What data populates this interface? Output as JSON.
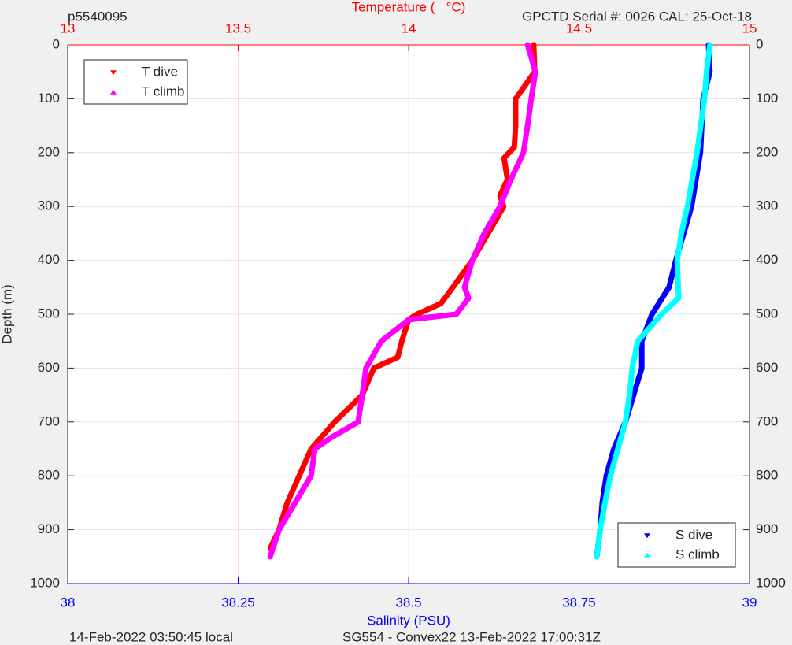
{
  "chart_data": {
    "type": "scatter",
    "top_left_label": "p5540095",
    "title": "Temperature (   °C)",
    "top_right_label": "GPCTD Serial #: 0026 CAL: 25-Oct-18",
    "ylabel": "Depth (m)",
    "xlabel": "Salinity (PSU)",
    "footer_left": "14-Feb-2022 03:50:45 local",
    "footer_center": "SG554 - Convex22 13-Feb-2022 17:00:31Z",
    "xlim": [
      38,
      39
    ],
    "xticks": [
      38,
      38.25,
      38.5,
      38.75,
      39
    ],
    "x2lim": [
      13,
      15
    ],
    "x2ticks": [
      13,
      13.5,
      14,
      14.5,
      15
    ],
    "ylim": [
      0,
      1000
    ],
    "yticks": [
      0,
      100,
      200,
      300,
      400,
      500,
      600,
      700,
      800,
      900,
      1000
    ],
    "y_reversed": true,
    "grid": true,
    "series": [
      {
        "name": "T dive",
        "color": "#ff0000",
        "axis": "x2",
        "marker": "down",
        "x": [
          14.367,
          14.37,
          14.314,
          14.314,
          14.31,
          14.28,
          14.29,
          14.268,
          14.279,
          14.233,
          14.187,
          14.13,
          14.095,
          14.025,
          14.0,
          13.98,
          13.968,
          13.898,
          13.864,
          13.783,
          13.714,
          13.679,
          13.644,
          13.62,
          13.594
        ],
        "y": [
          0,
          50,
          100,
          150,
          190,
          210,
          250,
          280,
          300,
          350,
          400,
          450,
          480,
          500,
          510,
          550,
          580,
          600,
          650,
          700,
          750,
          800,
          850,
          900,
          935
        ]
      },
      {
        "name": "T climb",
        "color": "#ff00ff",
        "axis": "x2",
        "marker": "up",
        "x": [
          14.349,
          14.372,
          14.36,
          14.349,
          14.337,
          14.3,
          14.268,
          14.222,
          14.187,
          14.164,
          14.176,
          14.14,
          14.0,
          13.92,
          13.875,
          13.864,
          13.852,
          13.77,
          13.725,
          13.714,
          13.667,
          13.62,
          13.594
        ],
        "y": [
          0,
          50,
          100,
          150,
          200,
          250,
          300,
          350,
          400,
          450,
          470,
          500,
          510,
          550,
          600,
          650,
          700,
          730,
          750,
          800,
          850,
          900,
          950
        ]
      },
      {
        "name": "S dive",
        "color": "#0000ff",
        "axis": "x",
        "marker": "down",
        "x": [
          38.94,
          38.942,
          38.932,
          38.928,
          38.915,
          38.892,
          38.882,
          38.857,
          38.842,
          38.842,
          38.83,
          38.818,
          38.801,
          38.79,
          38.784,
          38.781,
          38.776
        ],
        "y": [
          0,
          50,
          100,
          200,
          300,
          400,
          450,
          500,
          550,
          600,
          650,
          700,
          750,
          800,
          850,
          900,
          950
        ]
      },
      {
        "name": "S climb",
        "color": "#00ffff",
        "axis": "x",
        "marker": "up",
        "x": [
          38.942,
          38.937,
          38.934,
          38.923,
          38.909,
          38.9,
          38.894,
          38.896,
          38.871,
          38.836,
          38.828,
          38.824,
          38.818,
          38.807,
          38.796,
          38.788,
          38.781,
          38.776
        ],
        "y": [
          0,
          50,
          100,
          200,
          300,
          350,
          400,
          470,
          500,
          550,
          600,
          650,
          700,
          750,
          800,
          850,
          900,
          950
        ]
      }
    ]
  }
}
